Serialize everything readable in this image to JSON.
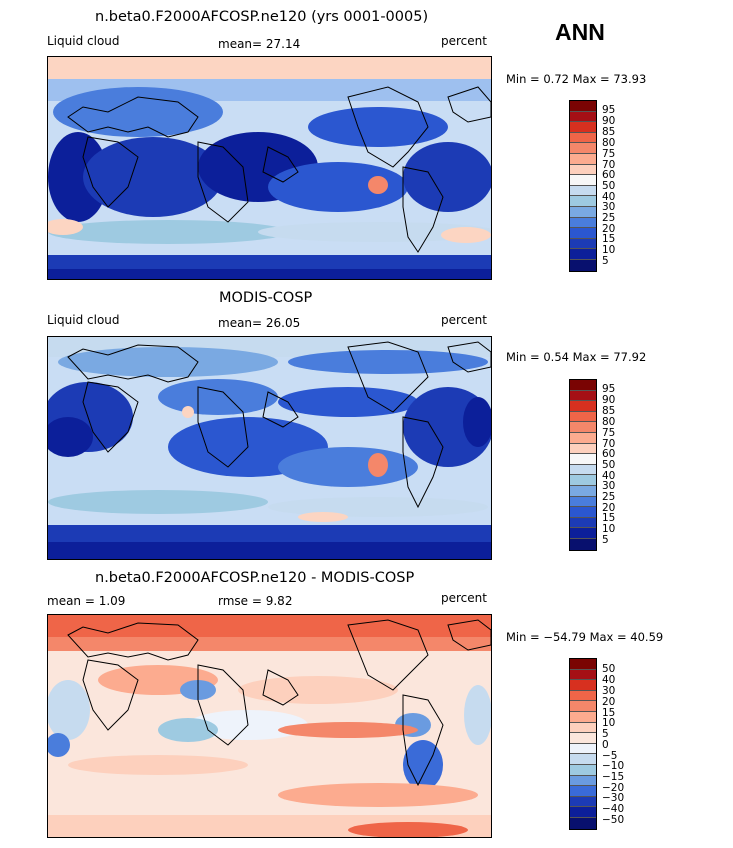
{
  "season": "ANN",
  "panels": [
    {
      "title": "n.beta0.F2000AFCOSP.ne120 (yrs 0001-0005)",
      "left_label": "Liquid cloud",
      "center_label": "mean=   27.14",
      "right_label": "percent",
      "minmax": "Min =    0.72  Max =   73.93",
      "levels": [
        "95",
        "90",
        "85",
        "80",
        "75",
        "70",
        "60",
        "50",
        "40",
        "30",
        "25",
        "20",
        "15",
        "10",
        "5"
      ],
      "colors": [
        "#7a0403",
        "#a50f15",
        "#d7301f",
        "#ef6548",
        "#f4876a",
        "#fcab8f",
        "#fdd0bd",
        "#f7f7f7",
        "#c6dbef",
        "#9ecae1",
        "#7aa9e2",
        "#4a7ddc",
        "#2b57d0",
        "#1c3bb5",
        "#0c1f9a",
        "#08106e"
      ]
    },
    {
      "title": "MODIS-COSP",
      "left_label": "Liquid cloud",
      "center_label": "mean=   26.05",
      "right_label": "percent",
      "minmax": "Min =    0.54  Max =   77.92",
      "levels": [
        "95",
        "90",
        "85",
        "80",
        "75",
        "70",
        "60",
        "50",
        "40",
        "30",
        "25",
        "20",
        "15",
        "10",
        "5"
      ],
      "colors": [
        "#7a0403",
        "#a50f15",
        "#d7301f",
        "#ef6548",
        "#f4876a",
        "#fcab8f",
        "#fdd0bd",
        "#f7f7f7",
        "#c6dbef",
        "#9ecae1",
        "#7aa9e2",
        "#4a7ddc",
        "#2b57d0",
        "#1c3bb5",
        "#0c1f9a",
        "#08106e"
      ]
    },
    {
      "title": "n.beta0.F2000AFCOSP.ne120 - MODIS-COSP",
      "left_label": "mean =     1.09",
      "center_label": "rmse =     9.82",
      "right_label": "percent",
      "minmax": "Min = −54.79  Max =   40.59",
      "levels": [
        "50",
        "40",
        "30",
        "20",
        "15",
        "10",
        "5",
        "0",
        "−5",
        "−10",
        "−15",
        "−20",
        "−30",
        "−40",
        "−50"
      ],
      "colors": [
        "#7a0403",
        "#a50f15",
        "#d7301f",
        "#ef6548",
        "#f4876a",
        "#fcab8f",
        "#fdd0bd",
        "#fbe6dc",
        "#eef3fb",
        "#c6dbef",
        "#9ecae1",
        "#6a9be0",
        "#3a6bd8",
        "#1c3bb5",
        "#0c1f9a",
        "#08106e"
      ]
    }
  ]
}
